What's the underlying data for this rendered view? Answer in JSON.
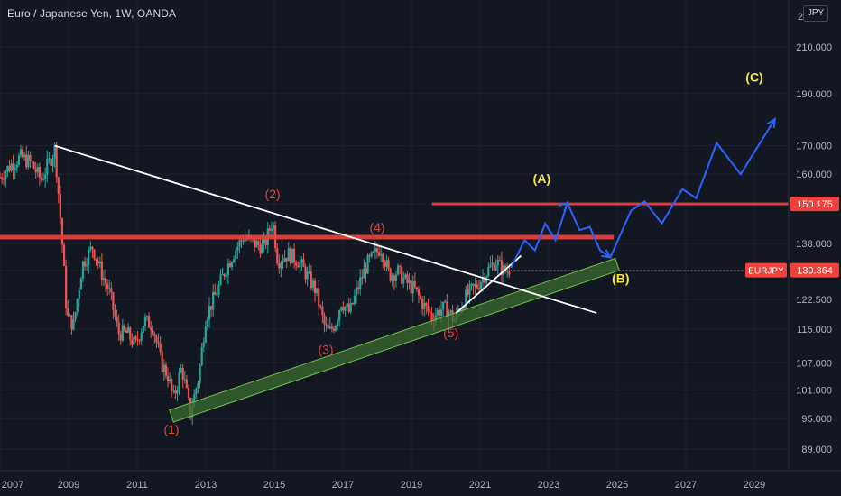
{
  "header": {
    "title": "Euro / Japanese Yen, 1W, OANDA",
    "currency_button": "JPY"
  },
  "colors": {
    "background": "#131722",
    "grid": "#1e222d",
    "axis_text": "#b2b5be",
    "candle_up": "#26a69a",
    "candle_down": "#ef5350",
    "resistance": "#f0413b",
    "trendline": "#ffffff",
    "channel_fill": "#3a6b2e",
    "channel_stroke": "#6fbf4a",
    "wave_label_red": "#e0433d",
    "wave_label_yellow": "#f5e642",
    "projection": "#2962ff"
  },
  "chart_data": {
    "type": "candlestick",
    "title": "Euro / Japanese Yen, 1W, OANDA",
    "instrument": "EURJPY",
    "y_scale": "log",
    "ylim": [
      85,
      232
    ],
    "xlim": [
      2007.0,
      2030.0
    ],
    "x_ticks": [
      "2007",
      "2009",
      "2011",
      "2013",
      "2015",
      "2017",
      "2019",
      "2021",
      "2023",
      "2025",
      "2027",
      "2029"
    ],
    "y_ticks": [
      "89.000",
      "95.000",
      "101.000",
      "107.000",
      "115.000",
      "122.500",
      "130.364",
      "138.000",
      "150.175",
      "160.000",
      "170.000",
      "190.000",
      "210.000"
    ],
    "y_top_partial": "2",
    "price_path": [
      [
        2007.0,
        159
      ],
      [
        2007.3,
        163
      ],
      [
        2007.6,
        166
      ],
      [
        2007.9,
        164
      ],
      [
        2008.2,
        158
      ],
      [
        2008.5,
        166
      ],
      [
        2008.6,
        169
      ],
      [
        2008.8,
        140
      ],
      [
        2008.95,
        118
      ],
      [
        2009.15,
        116
      ],
      [
        2009.4,
        132
      ],
      [
        2009.7,
        137
      ],
      [
        2009.95,
        130
      ],
      [
        2010.2,
        124
      ],
      [
        2010.45,
        114
      ],
      [
        2010.7,
        114
      ],
      [
        2010.95,
        111
      ],
      [
        2011.2,
        117
      ],
      [
        2011.45,
        116
      ],
      [
        2011.7,
        107
      ],
      [
        2011.9,
        104
      ],
      [
        2012.05,
        99
      ],
      [
        2012.3,
        106
      ],
      [
        2012.55,
        96
      ],
      [
        2012.8,
        104
      ],
      [
        2013.0,
        118
      ],
      [
        2013.3,
        124
      ],
      [
        2013.6,
        131
      ],
      [
        2013.85,
        136
      ],
      [
        2014.1,
        140
      ],
      [
        2014.4,
        138
      ],
      [
        2014.7,
        137
      ],
      [
        2014.95,
        145
      ],
      [
        2015.1,
        133
      ],
      [
        2015.4,
        135
      ],
      [
        2015.7,
        133
      ],
      [
        2015.95,
        129
      ],
      [
        2016.2,
        125
      ],
      [
        2016.45,
        116
      ],
      [
        2016.6,
        114
      ],
      [
        2016.8,
        117
      ],
      [
        2016.95,
        122
      ],
      [
        2017.2,
        119
      ],
      [
        2017.45,
        126
      ],
      [
        2017.7,
        132
      ],
      [
        2017.95,
        135
      ],
      [
        2018.1,
        137
      ],
      [
        2018.35,
        129
      ],
      [
        2018.6,
        130
      ],
      [
        2018.85,
        127
      ],
      [
        2019.1,
        125
      ],
      [
        2019.35,
        121
      ],
      [
        2019.6,
        118
      ],
      [
        2019.85,
        120
      ],
      [
        2020.05,
        120
      ],
      [
        2020.25,
        117
      ],
      [
        2020.45,
        121
      ],
      [
        2020.65,
        124
      ],
      [
        2020.9,
        126
      ],
      [
        2021.2,
        130
      ],
      [
        2021.45,
        133
      ],
      [
        2021.7,
        130
      ],
      [
        2021.9,
        131
      ]
    ],
    "last_price": "130.364",
    "resistance_levels": [
      {
        "price": 139.9,
        "x_from": 2007.0,
        "x_to": 2024.9
      },
      {
        "price": 150.175,
        "x_from": 2019.6,
        "x_to": 2030.0,
        "label": "150.175"
      }
    ],
    "trendlines": [
      {
        "from": [
          2008.6,
          170
        ],
        "to": [
          2024.4,
          119
        ]
      },
      {
        "from": [
          2020.3,
          119
        ],
        "to": [
          2022.2,
          134.5
        ]
      }
    ],
    "channel": {
      "from": [
        2012.0,
        95.5
      ],
      "to": [
        2025.0,
        132
      ],
      "width_units": 1.0
    },
    "projection_path": [
      [
        2021.9,
        131
      ],
      [
        2022.3,
        139
      ],
      [
        2022.6,
        136
      ],
      [
        2022.9,
        144
      ],
      [
        2023.2,
        139
      ],
      [
        2023.55,
        150.5
      ],
      [
        2023.9,
        142
      ],
      [
        2024.2,
        143
      ],
      [
        2024.5,
        136
      ],
      [
        2024.8,
        134
      ],
      [
        2025.4,
        148
      ],
      [
        2025.8,
        151
      ],
      [
        2026.3,
        144
      ],
      [
        2026.9,
        155
      ],
      [
        2027.3,
        152
      ],
      [
        2027.9,
        171
      ],
      [
        2028.6,
        160
      ],
      [
        2029.6,
        180
      ]
    ],
    "wave_labels": [
      {
        "text": "(1)",
        "x": 2012.0,
        "y": 92.0,
        "color": "red"
      },
      {
        "text": "(2)",
        "x": 2014.95,
        "y": 152.0,
        "color": "red"
      },
      {
        "text": "(3)",
        "x": 2016.5,
        "y": 109.0,
        "color": "red"
      },
      {
        "text": "(4)",
        "x": 2018.0,
        "y": 141.5,
        "color": "red"
      },
      {
        "text": "(5)",
        "x": 2020.15,
        "y": 113.0,
        "color": "red"
      },
      {
        "text": "(A)",
        "x": 2022.8,
        "y": 157.0,
        "color": "yellow"
      },
      {
        "text": "(B)",
        "x": 2025.1,
        "y": 127.0,
        "color": "yellow"
      },
      {
        "text": "(C)",
        "x": 2029.0,
        "y": 195.0,
        "color": "yellow"
      }
    ],
    "price_badges": [
      {
        "price": 150.175,
        "label": "150.175",
        "color": "#f0413b"
      },
      {
        "price": 130.364,
        "label": "130.364",
        "tag": "EURJPY",
        "color": "#f0413b"
      }
    ]
  }
}
